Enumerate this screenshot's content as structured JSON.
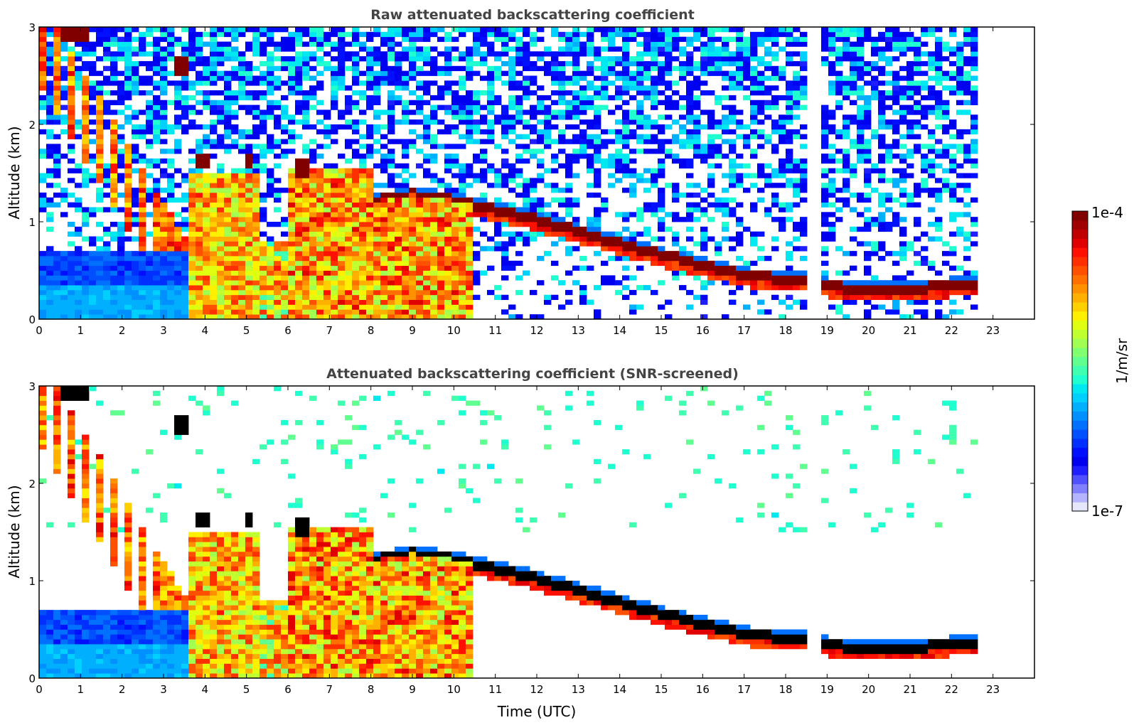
{
  "chart_data": [
    {
      "type": "heatmap",
      "title": "Raw attenuated backscattering coefficient",
      "xlabel": "",
      "ylabel": "Altitude (km)",
      "xlim": [
        0,
        24
      ],
      "ylim": [
        0,
        3
      ],
      "xticks": [
        "0",
        "1",
        "2",
        "3",
        "4",
        "5",
        "6",
        "7",
        "8",
        "9",
        "10",
        "11",
        "12",
        "13",
        "14",
        "15",
        "16",
        "17",
        "18",
        "19",
        "20",
        "21",
        "22",
        "23"
      ],
      "yticks": [
        "0",
        "1",
        "2",
        "3"
      ],
      "data_gaps_hours": [
        [
          18.5,
          18.85
        ],
        [
          22.55,
          24
        ]
      ],
      "features": {
        "boundary_layer_top_km": [
          {
            "t": 8.0,
            "z": 1.2
          },
          {
            "t": 9.0,
            "z": 1.28
          },
          {
            "t": 10.0,
            "z": 1.22
          },
          {
            "t": 11.0,
            "z": 1.12
          },
          {
            "t": 12.0,
            "z": 1.02
          },
          {
            "t": 13.0,
            "z": 0.9
          },
          {
            "t": 14.0,
            "z": 0.78
          },
          {
            "t": 15.0,
            "z": 0.66
          },
          {
            "t": 16.0,
            "z": 0.56
          },
          {
            "t": 17.0,
            "z": 0.45
          },
          {
            "t": 18.4,
            "z": 0.4
          },
          {
            "t": 19.0,
            "z": 0.34
          },
          {
            "t": 20.0,
            "z": 0.3
          },
          {
            "t": 21.0,
            "z": 0.3
          },
          {
            "t": 22.0,
            "z": 0.35
          },
          {
            "t": 22.5,
            "z": 0.35
          }
        ],
        "elevated_layers": [
          {
            "t_start": 0.6,
            "t_end": 1.2,
            "z_km": 2.95
          },
          {
            "t_start": 3.3,
            "t_end": 3.6,
            "z_km": 2.6
          },
          {
            "t_start": 3.8,
            "t_end": 4.1,
            "z_km": 1.63
          },
          {
            "t_start": 4.9,
            "t_end": 5.2,
            "z_km": 1.62
          },
          {
            "t_start": 6.1,
            "t_end": 6.6,
            "z_km": 1.55
          }
        ]
      }
    },
    {
      "type": "heatmap",
      "title": "Attenuated backscattering coefficient (SNR-screened)",
      "xlabel": "Time (UTC)",
      "ylabel": "Altitude (km)",
      "xlim": [
        0,
        24
      ],
      "ylim": [
        0,
        3
      ],
      "xticks": [
        "0",
        "1",
        "2",
        "3",
        "4",
        "5",
        "6",
        "7",
        "8",
        "9",
        "10",
        "11",
        "12",
        "13",
        "14",
        "15",
        "16",
        "17",
        "18",
        "19",
        "20",
        "21",
        "22",
        "23"
      ],
      "yticks": [
        "0",
        "1",
        "2",
        "3"
      ],
      "data_gaps_hours": [
        [
          18.5,
          18.85
        ],
        [
          22.55,
          24
        ]
      ]
    }
  ],
  "colorbar": {
    "label": "1/m/sr",
    "max_label": "1e-4",
    "min_label": "1e-7",
    "vmin": 1e-07,
    "vmax": 0.0001,
    "scale": "log",
    "colormap": "jet",
    "colors": [
      "#e6e6fa",
      "#b4b4ff",
      "#8080ff",
      "#5050ff",
      "#1e1eff",
      "#0000f0",
      "#0010ff",
      "#0030ff",
      "#0050ff",
      "#0070ff",
      "#0090ff",
      "#00b0ff",
      "#00d0ff",
      "#00e8f0",
      "#20ffd0",
      "#40ffb0",
      "#60ff90",
      "#80ff70",
      "#a0ff50",
      "#c0ff30",
      "#e0ff10",
      "#fff000",
      "#ffd000",
      "#ffb000",
      "#ff9000",
      "#ff7000",
      "#ff5000",
      "#ff3000",
      "#ff1000",
      "#e00000",
      "#c00000",
      "#a00000",
      "#800000"
    ]
  }
}
